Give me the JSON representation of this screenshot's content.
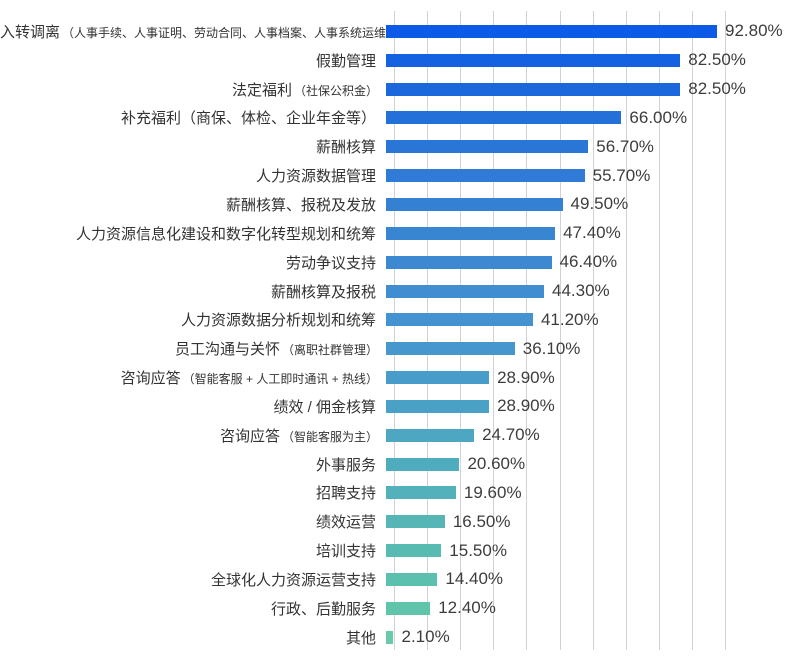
{
  "chart_data": {
    "type": "bar",
    "orientation": "horizontal",
    "title": "",
    "xlabel": "",
    "ylabel": "",
    "xlim": [
      0,
      92.8
    ],
    "grid": {
      "vertical_lines": true,
      "color": "#d2d2d2"
    },
    "legend": null,
    "categories": [
      "入转调离（人事手续、人事证明、劳动合同、人事档案、人事系统运维）",
      "假勤管理",
      "法定福利（社保公积金）",
      "补充福利（商保、体检、企业年金等）",
      "薪酬核算",
      "人力资源数据管理",
      "薪酬核算、报税及发放",
      "人力资源信息化建设和数字化转型规划和统筹",
      "劳动争议支持",
      "薪酬核算及报税",
      "人力资源数据分析规划和统筹",
      "员工沟通与关怀（离职社群管理）",
      "咨询应答（智能客服 + 人工即时通讯 + 热线）",
      "绩效 / 佣金核算",
      "咨询应答（智能客服为主）",
      "外事服务",
      "招聘支持",
      "绩效运营",
      "培训支持",
      "全球化人力资源运营支持",
      "行政、后勤服务",
      "其他"
    ],
    "values": [
      92.8,
      82.5,
      82.5,
      66.0,
      56.7,
      55.7,
      49.5,
      47.4,
      46.4,
      44.3,
      41.2,
      36.1,
      28.9,
      28.9,
      24.7,
      20.6,
      19.6,
      16.5,
      15.5,
      14.4,
      12.4,
      2.1
    ],
    "bars": [
      {
        "label_main": "入转调离",
        "label_sub": "（人事手续、人事证明、劳动合同、人事档案、人事系统运维）",
        "value": 92.8,
        "value_label": "92.80%",
        "color": "#0d5ae6"
      },
      {
        "label_main": "假勤管理",
        "label_sub": "",
        "value": 82.5,
        "value_label": "82.50%",
        "color": "#1461e1"
      },
      {
        "label_main": "法定福利",
        "label_sub": "（社保公积金）",
        "value": 82.5,
        "value_label": "82.50%",
        "color": "#1b68dc"
      },
      {
        "label_main": "补充福利（商保、体检、企业年金等）",
        "label_sub": "",
        "value": 66.0,
        "value_label": "66.00%",
        "color": "#2370d8"
      },
      {
        "label_main": "薪酬核算",
        "label_sub": "",
        "value": 56.7,
        "value_label": "56.70%",
        "color": "#2a76d6"
      },
      {
        "label_main": "人力资源数据管理",
        "label_sub": "",
        "value": 55.7,
        "value_label": "55.70%",
        "color": "#2f7bd5"
      },
      {
        "label_main": "薪酬核算、报税及发放",
        "label_sub": "",
        "value": 49.5,
        "value_label": "49.50%",
        "color": "#3480d3"
      },
      {
        "label_main": "人力资源信息化建设和数字化转型规划和统筹",
        "label_sub": "",
        "value": 47.4,
        "value_label": "47.40%",
        "color": "#3885d2"
      },
      {
        "label_main": "劳动争议支持",
        "label_sub": "",
        "value": 46.4,
        "value_label": "46.40%",
        "color": "#3c89d1"
      },
      {
        "label_main": "薪酬核算及报税",
        "label_sub": "",
        "value": 44.3,
        "value_label": "44.30%",
        "color": "#408dd1"
      },
      {
        "label_main": "人力资源数据分析规划和统筹",
        "label_sub": "",
        "value": 41.2,
        "value_label": "41.20%",
        "color": "#4492d0"
      },
      {
        "label_main": "员工沟通与关怀",
        "label_sub": "（离职社群管理）",
        "value": 36.1,
        "value_label": "36.10%",
        "color": "#4697cd"
      },
      {
        "label_main": "咨询应答",
        "label_sub": "（智能客服 + 人工即时通讯 + 热线）",
        "value": 28.9,
        "value_label": "28.90%",
        "color": "#489cc9"
      },
      {
        "label_main": "绩效 / 佣金核算",
        "label_sub": "",
        "value": 28.9,
        "value_label": "28.90%",
        "color": "#4aa1c6"
      },
      {
        "label_main": "咨询应答",
        "label_sub": "（智能客服为主）",
        "value": 24.7,
        "value_label": "24.70%",
        "color": "#4da7c2"
      },
      {
        "label_main": "外事服务",
        "label_sub": "",
        "value": 20.6,
        "value_label": "20.60%",
        "color": "#4facbe"
      },
      {
        "label_main": "招聘支持",
        "label_sub": "",
        "value": 19.6,
        "value_label": "19.60%",
        "color": "#52b1ba"
      },
      {
        "label_main": "绩效运营",
        "label_sub": "",
        "value": 16.5,
        "value_label": "16.50%",
        "color": "#55b6b5"
      },
      {
        "label_main": "培训支持",
        "label_sub": "",
        "value": 15.5,
        "value_label": "15.50%",
        "color": "#58bbb1"
      },
      {
        "label_main": "全球化人力资源运营支持",
        "label_sub": "",
        "value": 14.4,
        "value_label": "14.40%",
        "color": "#5bc0ad"
      },
      {
        "label_main": "行政、后勤服务",
        "label_sub": "",
        "value": 12.4,
        "value_label": "12.40%",
        "color": "#5fc4aa"
      },
      {
        "label_main": "其他",
        "label_sub": "",
        "value": 2.1,
        "value_label": "2.10%",
        "color": "#69c9ab"
      }
    ]
  },
  "colors": {
    "gridline": "#d2d2d2",
    "label_text": "#333333",
    "value_text": "#3d3d3d",
    "bar_gradient_start": "#0d5ae6",
    "bar_gradient_end": "#69c9ab",
    "background": "#ffffff"
  }
}
